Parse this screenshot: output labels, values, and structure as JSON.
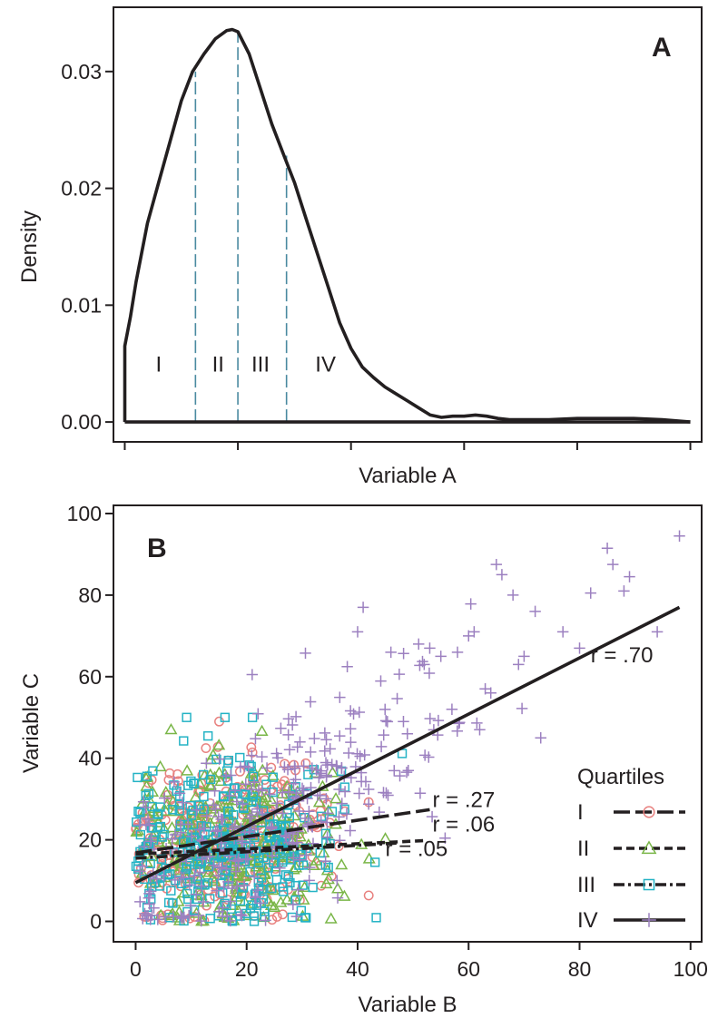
{
  "chart_data": [
    {
      "panel": "A",
      "type": "line",
      "xlabel": "Variable A",
      "ylabel": "Density",
      "xlim": [
        -2,
        102
      ],
      "ylim": [
        -0.0017,
        0.0355
      ],
      "xticks": [
        0,
        20,
        40,
        60,
        80,
        100
      ],
      "yticks": [
        0.0,
        0.01,
        0.02,
        0.03
      ],
      "ytick_labels": [
        "0.00",
        "0.01",
        "0.02",
        "0.03"
      ],
      "grid": false,
      "density_curve": {
        "x": [
          0,
          0,
          1,
          2,
          4,
          6,
          8,
          10,
          12,
          14,
          16,
          18,
          19,
          20,
          22,
          24,
          26,
          28,
          30,
          32,
          34,
          36,
          38,
          40,
          42,
          44,
          46,
          48,
          50,
          52,
          54,
          56,
          58,
          60,
          62,
          64,
          66,
          68,
          70,
          75,
          80,
          85,
          90,
          95,
          100
        ],
        "y": [
          0.0,
          0.0065,
          0.009,
          0.012,
          0.017,
          0.0205,
          0.024,
          0.0275,
          0.03,
          0.0315,
          0.0328,
          0.0335,
          0.0336,
          0.0334,
          0.0315,
          0.0285,
          0.0255,
          0.023,
          0.0205,
          0.0175,
          0.0145,
          0.0115,
          0.0085,
          0.0063,
          0.0047,
          0.0038,
          0.003,
          0.0024,
          0.0018,
          0.0012,
          0.0006,
          0.0004,
          0.0005,
          0.0005,
          0.0006,
          0.0005,
          0.0003,
          0.0002,
          0.0002,
          0.0002,
          0.0003,
          0.0003,
          0.0003,
          0.0002,
          0.0
        ]
      },
      "baseline": {
        "x": [
          0,
          100
        ],
        "y": [
          0,
          0
        ]
      },
      "quartile_cutoffs": [
        {
          "x": 12.5,
          "y": 0.03
        },
        {
          "x": 20.0,
          "y": 0.0334
        },
        {
          "x": 28.6,
          "y": 0.0228
        }
      ],
      "quartile_labels": [
        {
          "text": "I",
          "x": 6,
          "y": 0.0043
        },
        {
          "text": "II",
          "x": 16.5,
          "y": 0.0043
        },
        {
          "text": "III",
          "x": 24,
          "y": 0.0043
        },
        {
          "text": "IV",
          "x": 35.5,
          "y": 0.0043
        }
      ],
      "colors": {
        "curve": "#231f20",
        "cutoff": "#4a8aa0"
      }
    },
    {
      "panel": "B",
      "type": "scatter",
      "xlabel": "Variable B",
      "ylabel": "Variable C",
      "xlim": [
        -4,
        102
      ],
      "ylim": [
        -5,
        102
      ],
      "xticks": [
        0,
        20,
        40,
        60,
        80,
        100
      ],
      "yticks": [
        0,
        20,
        40,
        60,
        80,
        100
      ],
      "grid": false,
      "legend": {
        "title": "Quartiles",
        "position": "bottom-right"
      },
      "series": [
        {
          "name": "I",
          "marker": "circle",
          "color": "#e8817f",
          "line_style": "longdash",
          "fit": {
            "x": [
              0,
              53
            ],
            "y": [
              16.8,
              27.4
            ]
          },
          "point_cloud": {
            "n": 300,
            "seed": 11,
            "x_mean": 15,
            "x_sd": 9,
            "x_min": 0,
            "x_max": 42,
            "y_mean": 20,
            "y_sd": 10,
            "y_min": 0,
            "y_max": 52,
            "slope": 0.2
          }
        },
        {
          "name": "II",
          "marker": "triangle",
          "color": "#7ab648",
          "line_style": "dashed",
          "fit": {
            "x": [
              0,
              52
            ],
            "y": [
              16.5,
              19.8
            ]
          },
          "point_cloud": {
            "n": 300,
            "seed": 23,
            "x_mean": 16,
            "x_sd": 9,
            "x_min": 0,
            "x_max": 45,
            "y_mean": 19,
            "y_sd": 10,
            "y_min": 0,
            "y_max": 47,
            "slope": 0.06
          }
        },
        {
          "name": "III",
          "marker": "square",
          "color": "#24b3c5",
          "line_style": "dotdash",
          "fit": {
            "x": [
              0,
              47
            ],
            "y": [
              15.5,
              19.2
            ]
          },
          "point_cloud": {
            "n": 300,
            "seed": 37,
            "x_mean": 17,
            "x_sd": 10,
            "x_min": 0,
            "x_max": 53,
            "y_mean": 19,
            "y_sd": 11,
            "y_min": 0,
            "y_max": 50,
            "slope": 0.05
          }
        },
        {
          "name": "IV",
          "marker": "plus",
          "color": "#9c80c0",
          "line_style": "solid",
          "fit": {
            "x": [
              0,
              98
            ],
            "y": [
              9.5,
              77
            ]
          },
          "point_cloud": {
            "n": 320,
            "seed": 53,
            "x_mean": 24,
            "x_sd": 14,
            "x_min": 0,
            "x_max": 80,
            "y_mean": 25,
            "y_sd": 12,
            "y_min": 0,
            "y_max": 88,
            "slope": 0.69
          },
          "extra_points": [
            {
              "x": 98,
              "y": 94.5
            },
            {
              "x": 85,
              "y": 91.5
            },
            {
              "x": 86,
              "y": 87.5
            },
            {
              "x": 89,
              "y": 84.5
            },
            {
              "x": 88,
              "y": 81
            },
            {
              "x": 82,
              "y": 80.5
            },
            {
              "x": 65,
              "y": 87.5
            },
            {
              "x": 66,
              "y": 85
            },
            {
              "x": 68,
              "y": 80
            },
            {
              "x": 72,
              "y": 76
            },
            {
              "x": 77,
              "y": 71
            },
            {
              "x": 80,
              "y": 67
            },
            {
              "x": 94,
              "y": 71
            },
            {
              "x": 70,
              "y": 65
            },
            {
              "x": 73,
              "y": 45
            },
            {
              "x": 60,
              "y": 70
            },
            {
              "x": 61,
              "y": 71
            },
            {
              "x": 58,
              "y": 66
            },
            {
              "x": 53,
              "y": 67
            },
            {
              "x": 55,
              "y": 65
            },
            {
              "x": 52,
              "y": 63
            },
            {
              "x": 46,
              "y": 66
            },
            {
              "x": 51,
              "y": 68
            },
            {
              "x": 41,
              "y": 77
            },
            {
              "x": 40,
              "y": 71
            },
            {
              "x": 69,
              "y": 63
            },
            {
              "x": 63,
              "y": 57
            },
            {
              "x": 21,
              "y": 60.5
            },
            {
              "x": 64,
              "y": 56
            },
            {
              "x": 57,
              "y": 52
            },
            {
              "x": 62,
              "y": 47
            }
          ]
        }
      ],
      "annotations": [
        {
          "text": "r = .70",
          "x": 82,
          "y": 63.5
        },
        {
          "text": "r = .27",
          "x": 53.5,
          "y": 28
        },
        {
          "text": "r = .06",
          "x": 53.5,
          "y": 22
        },
        {
          "text": "r = .05",
          "x": 45,
          "y": 16
        }
      ]
    }
  ]
}
